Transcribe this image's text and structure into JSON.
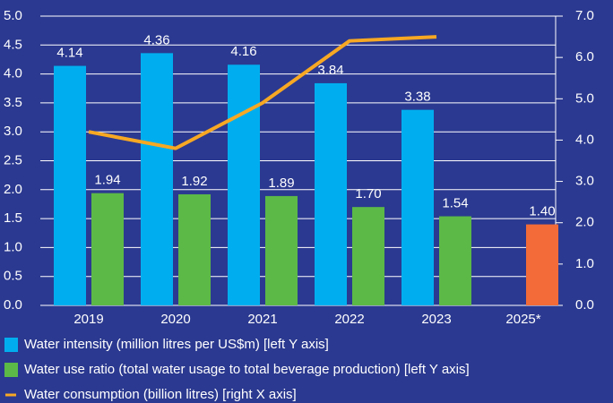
{
  "chart_data": {
    "type": "bar",
    "categories": [
      "2019",
      "2020",
      "2021",
      "2022",
      "2023",
      "2025*"
    ],
    "series": [
      {
        "name": "Water intensity (million litres per US$m) [left Y axis]",
        "type": "bar",
        "color": "#00aeef",
        "values": [
          4.14,
          4.36,
          4.16,
          3.84,
          3.38,
          null
        ],
        "value_labels": [
          "4.14",
          "4.36",
          "4.16",
          "3.84",
          "3.38",
          null
        ]
      },
      {
        "name": "Water use ratio (total water usage to total beverage production) [left Y axis]",
        "type": "bar",
        "color": "#5cb947",
        "colors": [
          "#5cb947",
          "#5cb947",
          "#5cb947",
          "#5cb947",
          "#5cb947",
          "#f26b38"
        ],
        "values": [
          1.94,
          1.92,
          1.89,
          1.7,
          1.54,
          1.4
        ],
        "value_labels": [
          "1.94",
          "1.92",
          "1.89",
          "1.70",
          "1.54",
          "1.40"
        ]
      },
      {
        "name": "Water consumption (billion litres) [right X axis]",
        "type": "line",
        "axis": "y2",
        "color": "#f7a823",
        "values": [
          4.2,
          3.8,
          4.9,
          6.4,
          6.5,
          null
        ]
      }
    ],
    "ylim": [
      0,
      5
    ],
    "yticks": [
      {
        "value": 0,
        "label": "0.0"
      },
      0.5,
      {
        "value": 1,
        "label": "1.0"
      },
      1.5,
      {
        "value": 2,
        "label": "2.0"
      },
      2.5,
      {
        "value": 3,
        "label": "3.0"
      },
      3.5,
      {
        "value": 4,
        "label": "4.0"
      },
      4.5,
      {
        "value": 5,
        "label": "5.0"
      }
    ],
    "y2lim": [
      0,
      7
    ],
    "y2ticks": [
      {
        "value": 0,
        "label": "0.0"
      },
      {
        "value": 1,
        "label": "1.0"
      },
      {
        "value": 2,
        "label": "2.0"
      },
      {
        "value": 3,
        "label": "3.0"
      },
      {
        "value": 4,
        "label": "4.0"
      },
      {
        "value": 5,
        "label": "5.0"
      },
      {
        "value": 6,
        "label": "6.0"
      },
      {
        "value": 7,
        "label": "7.0"
      }
    ],
    "grid": true
  }
}
